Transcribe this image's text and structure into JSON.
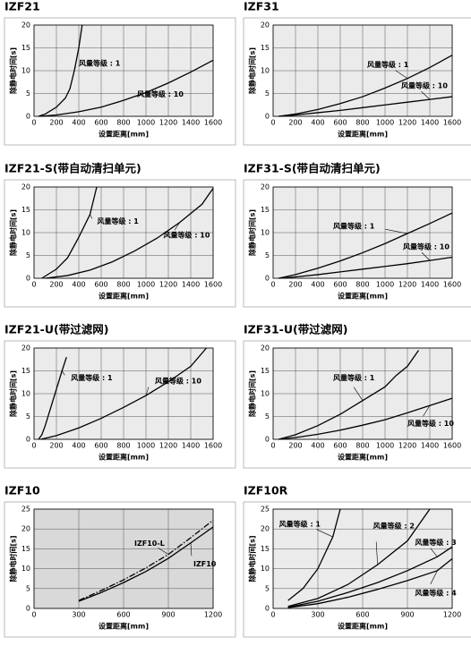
{
  "chart_data": [
    {
      "type": "line",
      "title": "IZF21",
      "x_label": "设置距离[mm]",
      "y_label": "除静电时间[s]",
      "xlim": [
        0,
        1600
      ],
      "ylim": [
        0,
        20
      ],
      "xticks": [
        0,
        200,
        400,
        600,
        800,
        1000,
        1200,
        1400,
        1600
      ],
      "yticks": [
        0,
        5,
        10,
        15,
        20
      ],
      "grid": true,
      "plot_background": "#ebebeb",
      "series": [
        {
          "name": "风量等级 : 1",
          "color": "#000000",
          "x": [
            40,
            100,
            200,
            280,
            320,
            360,
            400,
            430
          ],
          "values": [
            0,
            0.5,
            2,
            4,
            6,
            10,
            15,
            20
          ]
        },
        {
          "name": "风量等级 : 10",
          "color": "#000000",
          "x": [
            50,
            200,
            400,
            600,
            800,
            1000,
            1200,
            1400,
            1600
          ],
          "values": [
            0,
            0.3,
            1,
            2,
            3.5,
            5.2,
            7.3,
            9.7,
            12.3
          ]
        }
      ]
    },
    {
      "type": "line",
      "title": "IZF31",
      "x_label": "设置距离[mm]",
      "y_label": "除静电时间[s]",
      "xlim": [
        0,
        1600
      ],
      "ylim": [
        0,
        20
      ],
      "xticks": [
        0,
        200,
        400,
        600,
        800,
        1000,
        1200,
        1400,
        1600
      ],
      "yticks": [
        0,
        5,
        10,
        15,
        20
      ],
      "grid": true,
      "plot_background": "#ebebeb",
      "series": [
        {
          "name": "风量等级 : 1",
          "color": "#000000",
          "x": [
            50,
            200,
            400,
            600,
            800,
            1000,
            1200,
            1400,
            1600
          ],
          "values": [
            0,
            0.5,
            1.5,
            2.8,
            4.3,
            6.2,
            8.3,
            10.7,
            13.4
          ]
        },
        {
          "name": "风量等级 : 10",
          "color": "#000000",
          "x": [
            50,
            200,
            400,
            600,
            800,
            1000,
            1200,
            1400,
            1600
          ],
          "values": [
            0,
            0.3,
            0.8,
            1.3,
            1.9,
            2.5,
            3.1,
            3.7,
            4.3
          ]
        }
      ]
    },
    {
      "type": "line",
      "title": "IZF21-S(带自动清扫单元)",
      "x_label": "设置距离[mm]",
      "y_label": "除静电时间[s]",
      "xlim": [
        0,
        1600
      ],
      "ylim": [
        0,
        20
      ],
      "xticks": [
        0,
        200,
        400,
        600,
        800,
        1000,
        1200,
        1400,
        1600
      ],
      "yticks": [
        0,
        5,
        10,
        15,
        20
      ],
      "grid": true,
      "plot_background": "#ebebeb",
      "series": [
        {
          "name": "风量等级 : 1",
          "color": "#000000",
          "x": [
            70,
            200,
            300,
            400,
            500,
            560
          ],
          "values": [
            0,
            2,
            4.5,
            9,
            14,
            20
          ]
        },
        {
          "name": "风量等级 : 10",
          "color": "#000000",
          "x": [
            100,
            300,
            500,
            700,
            900,
            1100,
            1300,
            1500,
            1600
          ],
          "values": [
            0,
            0.6,
            1.8,
            3.6,
            6,
            8.8,
            12.2,
            16.2,
            19.7
          ]
        }
      ]
    },
    {
      "type": "line",
      "title": "IZF31-S(带自动清扫单元)",
      "x_label": "设置距离[mm]",
      "y_label": "除静电时间[s]",
      "xlim": [
        0,
        1600
      ],
      "ylim": [
        0,
        20
      ],
      "xticks": [
        0,
        200,
        400,
        600,
        800,
        1000,
        1200,
        1400,
        1600
      ],
      "yticks": [
        0,
        5,
        10,
        15,
        20
      ],
      "grid": true,
      "plot_background": "#ebebeb",
      "series": [
        {
          "name": "风量等级 : 1",
          "color": "#000000",
          "x": [
            50,
            200,
            400,
            600,
            800,
            1000,
            1200,
            1400,
            1600
          ],
          "values": [
            0,
            0.8,
            2.2,
            3.8,
            5.6,
            7.6,
            9.8,
            12,
            14.3
          ]
        },
        {
          "name": "风量等级 : 10",
          "color": "#000000",
          "x": [
            50,
            200,
            400,
            600,
            800,
            1000,
            1200,
            1400,
            1600
          ],
          "values": [
            0,
            0.3,
            0.8,
            1.4,
            2,
            2.6,
            3.2,
            3.9,
            4.6
          ]
        }
      ]
    },
    {
      "type": "line",
      "title": "IZF21-U(带过滤网)",
      "x_label": "设置距离[mm]",
      "y_label": "除静电时间[s]",
      "xlim": [
        0,
        1600
      ],
      "ylim": [
        0,
        20
      ],
      "xticks": [
        0,
        200,
        400,
        600,
        800,
        1000,
        1200,
        1400,
        1600
      ],
      "yticks": [
        0,
        5,
        10,
        15,
        20
      ],
      "grid": true,
      "plot_background": "#ebebeb",
      "series": [
        {
          "name": "风量等级 : 1",
          "color": "#000000",
          "x": [
            40,
            70,
            100,
            150,
            200,
            250,
            290
          ],
          "values": [
            0,
            1,
            3,
            7,
            11,
            15,
            18
          ]
        },
        {
          "name": "风量等级 : 10",
          "color": "#000000",
          "x": [
            60,
            200,
            400,
            600,
            800,
            1000,
            1200,
            1400,
            1540
          ],
          "values": [
            0,
            0.8,
            2.5,
            4.6,
            7,
            9.6,
            12.6,
            16,
            20
          ]
        }
      ]
    },
    {
      "type": "line",
      "title": "IZF31-U(带过滤网)",
      "x_label": "设置距离[mm]",
      "y_label": "除静电时间[s]",
      "xlim": [
        0,
        1600
      ],
      "ylim": [
        0,
        20
      ],
      "xticks": [
        0,
        200,
        400,
        600,
        800,
        1000,
        1200,
        1400,
        1600
      ],
      "yticks": [
        0,
        5,
        10,
        15,
        20
      ],
      "grid": true,
      "plot_background": "#ebebeb",
      "series": [
        {
          "name": "风量等级 : 1",
          "color": "#000000",
          "x": [
            50,
            200,
            400,
            600,
            800,
            1000,
            1100,
            1200,
            1300
          ],
          "values": [
            0,
            1,
            3,
            5.5,
            8.5,
            11.5,
            14,
            16,
            19.5
          ]
        },
        {
          "name": "风量等级 : 10",
          "color": "#000000",
          "x": [
            50,
            200,
            400,
            600,
            800,
            1000,
            1200,
            1400,
            1600
          ],
          "values": [
            0,
            0.4,
            1.1,
            2,
            3.1,
            4.3,
            5.8,
            7.4,
            9
          ]
        }
      ]
    },
    {
      "type": "line",
      "title": "IZF10",
      "x_label": "设置距离[mm]",
      "y_label": "除静电时间[s]",
      "xlim": [
        0,
        1200
      ],
      "ylim": [
        0,
        25
      ],
      "xticks": [
        0,
        300,
        600,
        900,
        1200
      ],
      "yticks": [
        0,
        5,
        10,
        15,
        20,
        25
      ],
      "grid": true,
      "plot_background": "#d9d9d9",
      "series": [
        {
          "name": "IZF10-L",
          "color": "#000000",
          "linestyle": "dashdot",
          "x": [
            300,
            450,
            600,
            750,
            900,
            1050,
            1200
          ],
          "values": [
            2,
            4.5,
            7.2,
            10.2,
            13.6,
            17.8,
            22.2
          ]
        },
        {
          "name": "IZF10",
          "color": "#000000",
          "x": [
            300,
            450,
            600,
            750,
            900,
            1050,
            1200
          ],
          "values": [
            1.8,
            4,
            6.5,
            9.3,
            12.6,
            16.5,
            20.5
          ]
        }
      ]
    },
    {
      "type": "line",
      "title": "IZF10R",
      "x_label": "设置距离[mm]",
      "y_label": "除静电时间[s]",
      "xlim": [
        0,
        1200
      ],
      "ylim": [
        0,
        25
      ],
      "xticks": [
        0,
        300,
        600,
        900,
        1200
      ],
      "yticks": [
        0,
        5,
        10,
        15,
        20,
        25
      ],
      "grid": true,
      "plot_background": "#ebebeb",
      "series": [
        {
          "name": "风量等级 : 1",
          "color": "#000000",
          "x": [
            100,
            200,
            300,
            400,
            450
          ],
          "values": [
            2,
            5,
            10,
            18,
            25
          ]
        },
        {
          "name": "风量等级 : 2",
          "color": "#000000",
          "x": [
            100,
            300,
            500,
            700,
            900,
            1050
          ],
          "values": [
            0.5,
            2.5,
            6,
            11,
            17,
            25
          ]
        },
        {
          "name": "风量等级 : 3",
          "color": "#000000",
          "x": [
            100,
            300,
            500,
            700,
            900,
            1100,
            1200
          ],
          "values": [
            0.3,
            1.8,
            4,
            6.5,
            9.5,
            13,
            15.5
          ]
        },
        {
          "name": "风量等级 : 4",
          "color": "#000000",
          "x": [
            100,
            300,
            500,
            700,
            900,
            1100,
            1200
          ],
          "values": [
            0.2,
            1.2,
            2.8,
            4.8,
            7,
            9.5,
            12.5
          ]
        }
      ]
    }
  ]
}
